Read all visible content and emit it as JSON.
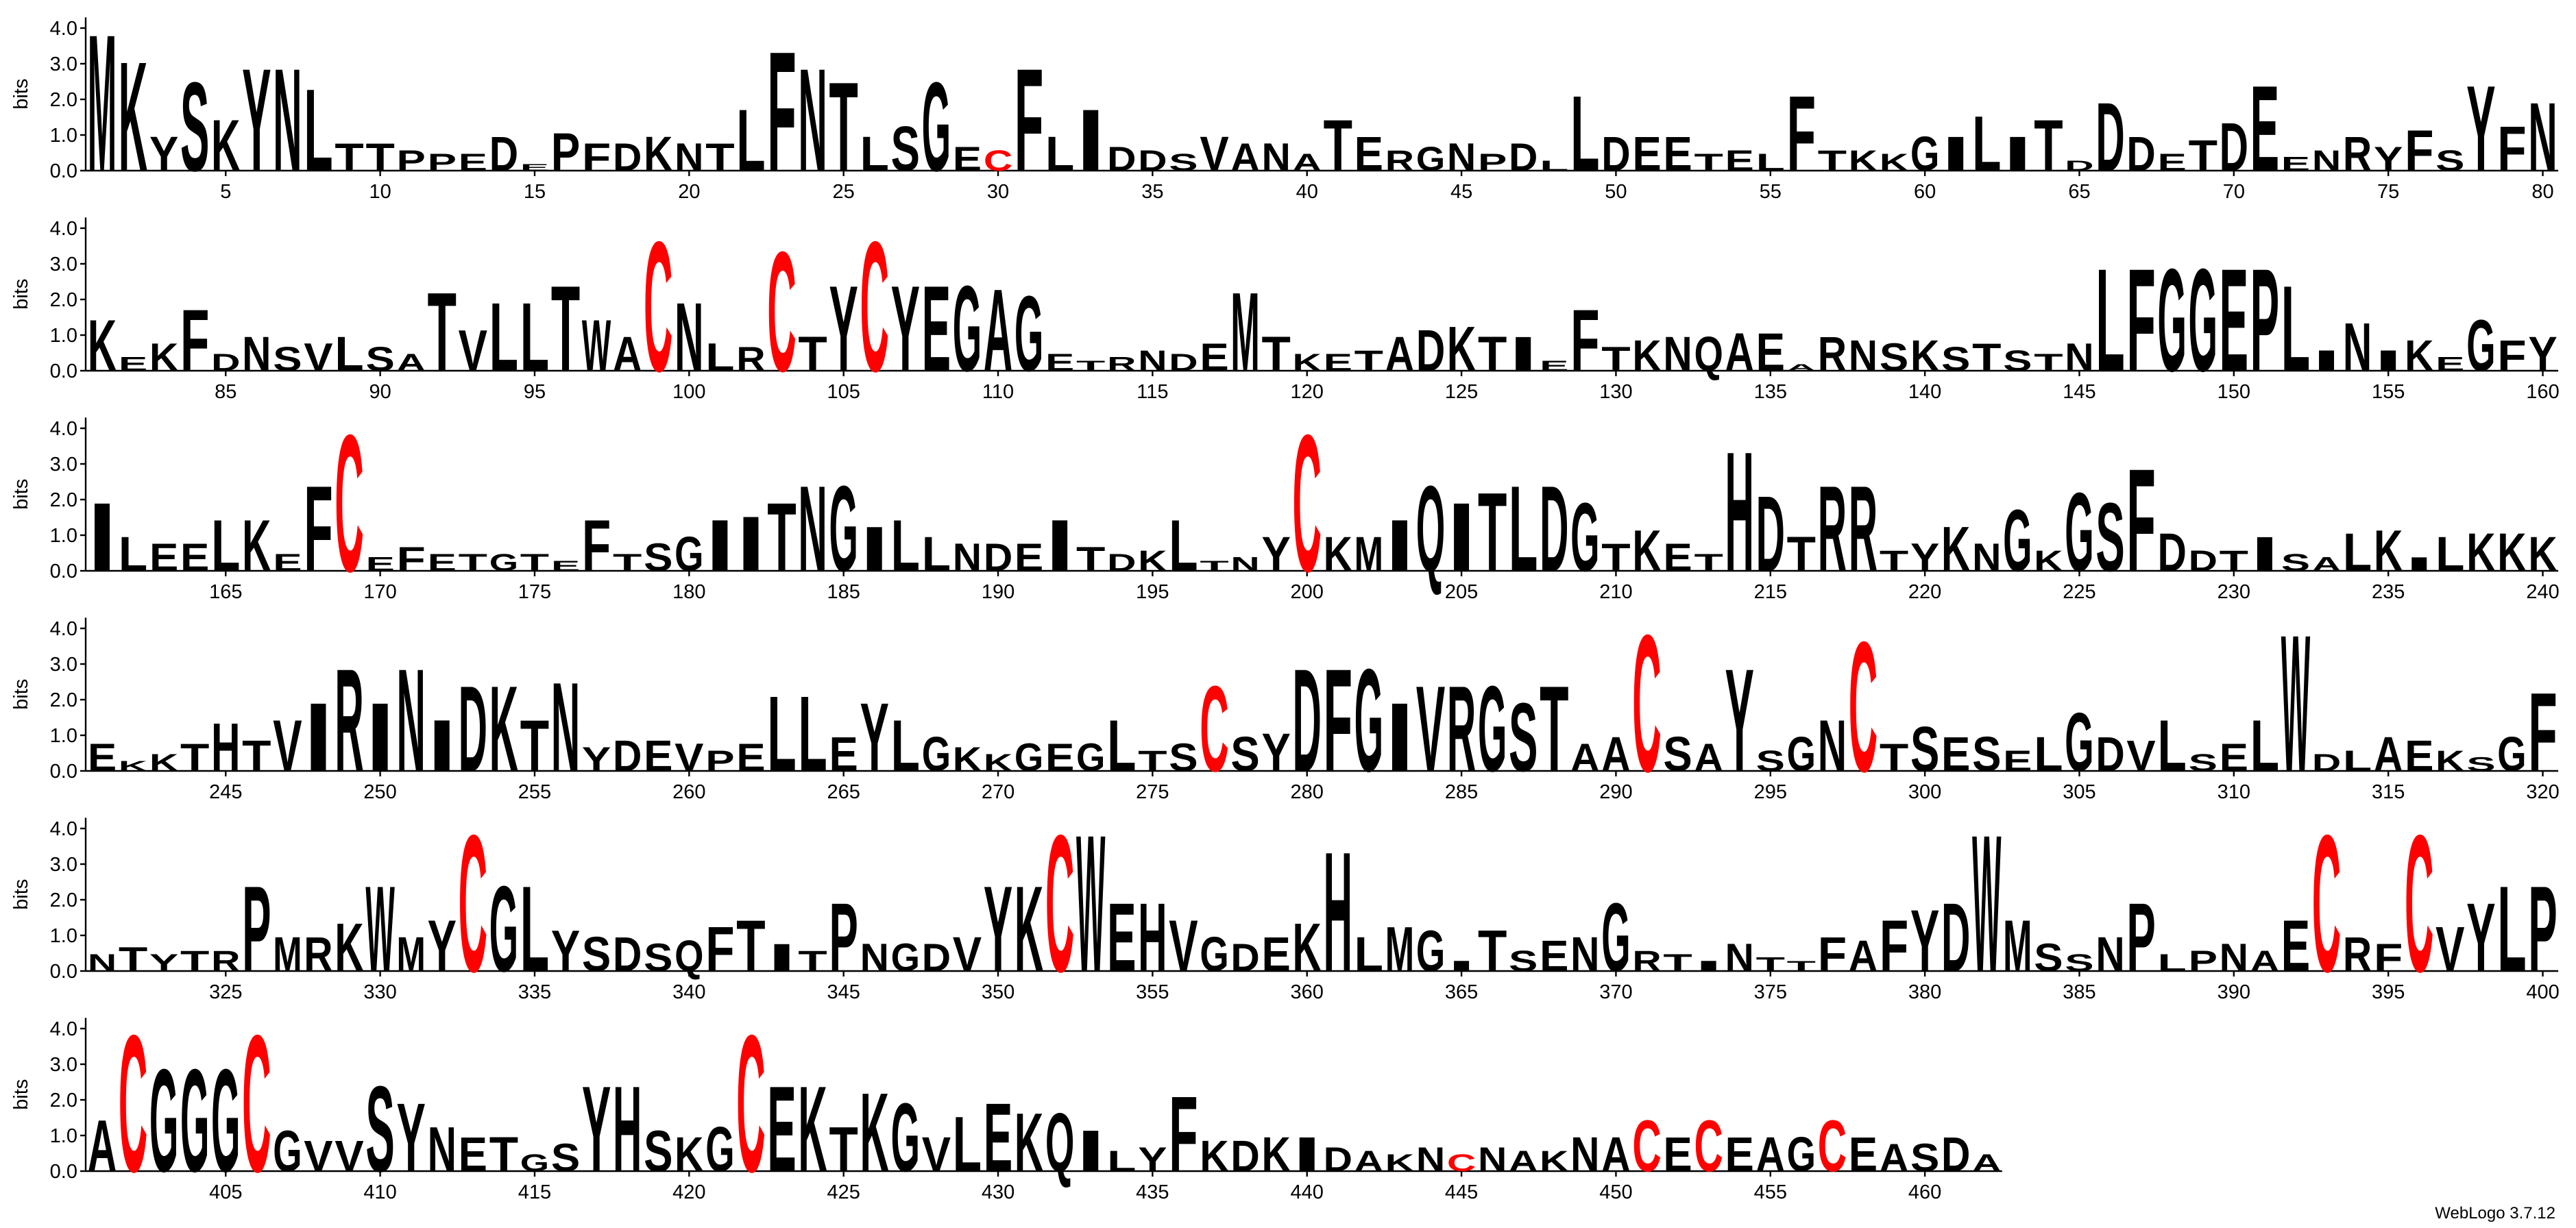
{
  "chart_data": {
    "type": "logo",
    "ylabel": "bits",
    "credit": "WebLogo 3.7.12",
    "color": "#000000",
    "letter_colors": {
      "C": "#ff0000"
    },
    "ylim": [
      0,
      4.3
    ],
    "yticks": [
      {
        "value": 0,
        "label": "0.0"
      },
      {
        "value": 1,
        "label": "1.0"
      },
      {
        "value": 2,
        "label": "2.0"
      },
      {
        "value": 3,
        "label": "3.0"
      },
      {
        "value": 4,
        "label": "4.0"
      }
    ],
    "xticks": [
      5,
      10,
      15,
      20,
      25,
      30,
      35,
      40,
      45,
      50,
      55,
      60,
      65,
      70,
      75,
      80,
      85,
      90,
      95,
      100,
      105,
      110,
      115,
      120,
      125,
      130,
      135,
      140,
      145,
      150,
      155,
      160,
      165,
      170,
      175,
      180,
      185,
      190,
      195,
      200,
      205,
      210,
      215,
      220,
      225,
      230,
      235,
      240,
      245,
      250,
      255,
      260,
      265,
      270,
      275,
      280,
      285,
      290,
      295,
      300,
      305,
      310,
      315,
      320,
      325,
      330,
      335,
      340,
      345,
      350,
      355,
      360,
      365,
      370,
      375,
      380,
      385,
      390,
      395,
      400,
      405,
      410,
      415,
      420,
      425,
      430,
      435,
      440,
      445,
      450,
      455,
      460
    ],
    "categories": [
      "M",
      "K",
      "Y",
      "S",
      "K",
      "Y",
      "N",
      "L",
      "T",
      "T",
      "P",
      "P",
      "E",
      "D",
      "E",
      "P",
      "F",
      "D",
      "K",
      "N",
      "T",
      "L",
      "F",
      "N",
      "T",
      "L",
      "S",
      "G",
      "E",
      "C",
      "F",
      "L",
      "I",
      "D",
      "D",
      "S",
      "V",
      "A",
      "N",
      "A",
      "T",
      "E",
      "R",
      "G",
      "N",
      "P",
      "D",
      "L",
      "L",
      "D",
      "E",
      "E",
      "T",
      "E",
      "L",
      "F",
      "T",
      "K",
      "K",
      "G",
      "I",
      "L",
      "I",
      "T",
      "D",
      "D",
      "D",
      "E",
      "T",
      "D",
      "E",
      "E",
      "N",
      "R",
      "Y",
      "F",
      "S",
      "Y",
      "F",
      "N",
      "K",
      "E",
      "K",
      "F",
      "D",
      "N",
      "S",
      "V",
      "L",
      "S",
      "A",
      "T",
      "V",
      "L",
      "L",
      "T",
      "W",
      "A",
      "C",
      "N",
      "L",
      "R",
      "C",
      "T",
      "Y",
      "C",
      "Y",
      "E",
      "G",
      "A",
      "G",
      "E",
      "T",
      "R",
      "N",
      "D",
      "E",
      "M",
      "T",
      "K",
      "E",
      "T",
      "A",
      "D",
      "K",
      "T",
      "I",
      "E",
      "F",
      "T",
      "K",
      "N",
      "Q",
      "A",
      "E",
      "A",
      "R",
      "N",
      "S",
      "K",
      "S",
      "T",
      "S",
      "T",
      "N",
      "L",
      "F",
      "G",
      "G",
      "E",
      "P",
      "L",
      "I",
      "N",
      "I",
      "K",
      "E",
      "G",
      "F",
      "Y",
      "I",
      "L",
      "E",
      "E",
      "L",
      "K",
      "E",
      "F",
      "C",
      "E",
      "F",
      "E",
      "T",
      "G",
      "T",
      "E",
      "F",
      "T",
      "S",
      "G",
      "I",
      "I",
      "T",
      "N",
      "G",
      "I",
      "L",
      "L",
      "N",
      "D",
      "E",
      "I",
      "T",
      "D",
      "K",
      "L",
      "T",
      "N",
      "Y",
      "C",
      "K",
      "M",
      "I",
      "Q",
      "I",
      "T",
      "L",
      "D",
      "G",
      "T",
      "K",
      "E",
      "T",
      "H",
      "D",
      "T",
      "R",
      "R",
      "T",
      "Y",
      "K",
      "N",
      "G",
      "K",
      "G",
      "S",
      "F",
      "D",
      "D",
      "T",
      "I",
      "S",
      "A",
      "L",
      "K",
      "I",
      "L",
      "K",
      "K",
      "K",
      "E",
      "K",
      "K",
      "T",
      "H",
      "T",
      "V",
      "I",
      "R",
      "I",
      "N",
      "I",
      "D",
      "K",
      "T",
      "N",
      "Y",
      "D",
      "E",
      "V",
      "P",
      "E",
      "L",
      "L",
      "E",
      "Y",
      "L",
      "G",
      "K",
      "K",
      "G",
      "E",
      "G",
      "L",
      "T",
      "S",
      "C",
      "S",
      "Y",
      "D",
      "F",
      "G",
      "I",
      "V",
      "R",
      "G",
      "S",
      "T",
      "A",
      "A",
      "C",
      "S",
      "A",
      "Y",
      "S",
      "G",
      "N",
      "C",
      "T",
      "S",
      "E",
      "S",
      "E",
      "L",
      "G",
      "D",
      "V",
      "L",
      "S",
      "E",
      "L",
      "W",
      "D",
      "L",
      "A",
      "E",
      "K",
      "S",
      "G",
      "F",
      "N",
      "T",
      "Y",
      "T",
      "R",
      "P",
      "M",
      "R",
      "K",
      "W",
      "M",
      "Y",
      "C",
      "G",
      "L",
      "Y",
      "S",
      "D",
      "S",
      "Q",
      "F",
      "T",
      "I",
      "T",
      "P",
      "N",
      "G",
      "D",
      "V",
      "Y",
      "K",
      "C",
      "W",
      "E",
      "H",
      "V",
      "G",
      "D",
      "E",
      "K",
      "H",
      "L",
      "M",
      "G",
      "I",
      "T",
      "S",
      "E",
      "N",
      "G",
      "R",
      "T",
      "I",
      "N",
      "T",
      "T",
      "F",
      "A",
      "F",
      "Y",
      "D",
      "W",
      "M",
      "S",
      "S",
      "N",
      "P",
      "L",
      "P",
      "N",
      "A",
      "E",
      "C",
      "R",
      "F",
      "C",
      "V",
      "Y",
      "L",
      "P",
      "A",
      "C",
      "G",
      "G",
      "G",
      "C",
      "G",
      "V",
      "V",
      "S",
      "Y",
      "N",
      "E",
      "T",
      "G",
      "S",
      "Y",
      "H",
      "S",
      "K",
      "G",
      "C",
      "E",
      "K",
      "T",
      "K",
      "G",
      "V",
      "L",
      "E",
      "K",
      "Q",
      "I",
      "L",
      "Y",
      "F",
      "K",
      "D",
      "K",
      "I",
      "D",
      "A",
      "K",
      "N",
      "C",
      "N",
      "A",
      "K",
      "N",
      "A",
      "C",
      "E",
      "C",
      "E",
      "A",
      "G",
      "C",
      "E",
      "A",
      "S",
      "D",
      "A"
    ],
    "values": [
      4.0,
      3.2,
      1.0,
      2.6,
      1.5,
      3.0,
      3.0,
      2.4,
      0.8,
      0.8,
      0.6,
      0.5,
      0.5,
      1.0,
      0.2,
      1.1,
      0.8,
      0.8,
      1.0,
      0.8,
      0.8,
      1.8,
      3.5,
      3.0,
      2.6,
      1.0,
      1.3,
      2.6,
      0.7,
      0.6,
      3.0,
      1.0,
      1.8,
      0.7,
      0.6,
      0.5,
      1.0,
      0.8,
      0.8,
      0.5,
      1.5,
      1.0,
      0.6,
      0.7,
      0.8,
      0.5,
      0.8,
      0.3,
      2.2,
      1.0,
      1.0,
      1.0,
      0.5,
      0.6,
      0.5,
      2.2,
      0.6,
      0.6,
      0.5,
      1.0,
      1.0,
      1.6,
      1.0,
      1.5,
      0.3,
      2.0,
      1.0,
      0.5,
      0.9,
      1.4,
      2.5,
      0.4,
      0.6,
      1.0,
      0.7,
      1.2,
      0.6,
      2.5,
      1.3,
      2.0,
      1.5,
      0.4,
      0.8,
      1.8,
      0.5,
      1.0,
      0.7,
      0.8,
      1.0,
      0.7,
      0.5,
      2.3,
      1.2,
      2.0,
      2.0,
      2.5,
      1.5,
      1.0,
      3.8,
      2.0,
      0.8,
      0.7,
      3.5,
      1.0,
      2.5,
      3.8,
      2.5,
      2.5,
      2.5,
      2.4,
      2.2,
      0.5,
      0.3,
      0.4,
      0.6,
      0.5,
      0.8,
      2.3,
      1.0,
      0.5,
      0.5,
      0.6,
      1.0,
      1.2,
      1.3,
      1.0,
      1.0,
      0.3,
      1.8,
      0.7,
      0.9,
      1.0,
      1.0,
      1.1,
      1.1,
      0.2,
      1.0,
      0.9,
      0.8,
      0.9,
      0.7,
      0.8,
      0.6,
      0.5,
      0.8,
      3.0,
      3.0,
      3.0,
      3.0,
      3.0,
      3.0,
      2.5,
      0.6,
      1.4,
      0.6,
      0.9,
      0.4,
      1.5,
      0.9,
      1.0,
      2.0,
      1.0,
      0.8,
      0.8,
      1.5,
      1.5,
      0.5,
      2.5,
      4.0,
      0.4,
      0.7,
      0.5,
      0.5,
      0.5,
      0.5,
      0.3,
      1.5,
      0.5,
      0.8,
      1.0,
      1.5,
      1.6,
      2.0,
      2.5,
      2.5,
      1.3,
      1.5,
      1.0,
      0.8,
      0.8,
      0.8,
      1.5,
      0.7,
      0.5,
      0.6,
      1.5,
      0.3,
      0.4,
      1.0,
      4.0,
      1.0,
      1.0,
      1.5,
      2.5,
      2.0,
      2.3,
      2.5,
      2.5,
      2.0,
      0.8,
      1.2,
      0.8,
      0.5,
      3.5,
      2.2,
      1.0,
      2.5,
      2.5,
      0.6,
      0.8,
      1.3,
      0.8,
      1.8,
      0.6,
      2.3,
      2.0,
      3.0,
      1.1,
      0.6,
      0.6,
      1.0,
      0.5,
      0.4,
      1.1,
      1.2,
      0.4,
      1.0,
      1.1,
      1.1,
      1.0,
      0.8,
      0.3,
      0.5,
      0.8,
      1.4,
      0.9,
      1.5,
      2.0,
      3.0,
      2.0,
      3.0,
      1.5,
      2.5,
      2.5,
      1.5,
      2.6,
      0.7,
      0.9,
      0.9,
      0.8,
      0.6,
      0.8,
      2.2,
      2.2,
      1.0,
      2.0,
      1.5,
      1.0,
      0.7,
      0.5,
      0.8,
      0.8,
      0.8,
      1.5,
      0.6,
      0.8,
      2.5,
      1.0,
      1.1,
      3.0,
      3.0,
      3.0,
      2.0,
      2.5,
      2.5,
      2.5,
      2.0,
      2.5,
      0.8,
      1.0,
      4.0,
      1.0,
      0.8,
      3.0,
      0.6,
      1.0,
      1.5,
      3.8,
      0.8,
      1.3,
      1.0,
      1.0,
      0.6,
      1.0,
      1.7,
      1.0,
      0.9,
      1.5,
      0.5,
      0.8,
      1.5,
      4.0,
      0.5,
      0.6,
      1.0,
      0.9,
      0.6,
      0.4,
      1.0,
      2.3,
      0.5,
      0.7,
      0.5,
      0.6,
      0.6,
      2.5,
      1.0,
      1.0,
      1.4,
      2.5,
      1.0,
      1.5,
      4.0,
      2.5,
      2.5,
      1.2,
      1.0,
      1.0,
      0.8,
      0.9,
      1.3,
      1.5,
      0.8,
      0.6,
      2.0,
      0.8,
      0.8,
      0.8,
      1.0,
      2.5,
      2.5,
      4.0,
      4.0,
      2.0,
      2.0,
      1.5,
      1.0,
      0.8,
      1.0,
      1.4,
      3.5,
      1.0,
      1.3,
      1.2,
      0.3,
      1.2,
      0.6,
      0.9,
      1.0,
      2.0,
      0.6,
      0.5,
      0.3,
      0.8,
      0.4,
      0.3,
      1.0,
      0.9,
      1.5,
      1.8,
      2.0,
      4.0,
      1.5,
      0.8,
      0.5,
      1.0,
      2.0,
      0.5,
      0.6,
      0.8,
      0.6,
      1.5,
      4.0,
      1.0,
      0.8,
      4.0,
      1.3,
      2.0,
      2.5,
      2.5,
      1.5,
      4.0,
      3.0,
      3.0,
      3.0,
      4.0,
      1.2,
      0.9,
      0.9,
      2.5,
      2.0,
      1.3,
      1.0,
      1.0,
      0.5,
      0.8,
      2.5,
      2.5,
      1.2,
      1.0,
      1.3,
      4.0,
      2.5,
      2.5,
      1.3,
      2.3,
      2.0,
      1.0,
      1.6,
      2.0,
      1.7,
      1.7,
      1.2,
      0.6,
      0.7,
      2.2,
      0.9,
      0.9,
      1.0,
      1.0,
      0.7,
      0.6,
      0.5,
      0.7,
      0.5,
      0.7,
      0.6,
      0.6,
      1.0,
      1.0,
      1.5,
      1.0,
      1.5,
      1.0,
      1.0,
      1.0,
      1.5,
      1.0,
      0.8,
      0.8,
      1.0,
      0.5
    ]
  }
}
